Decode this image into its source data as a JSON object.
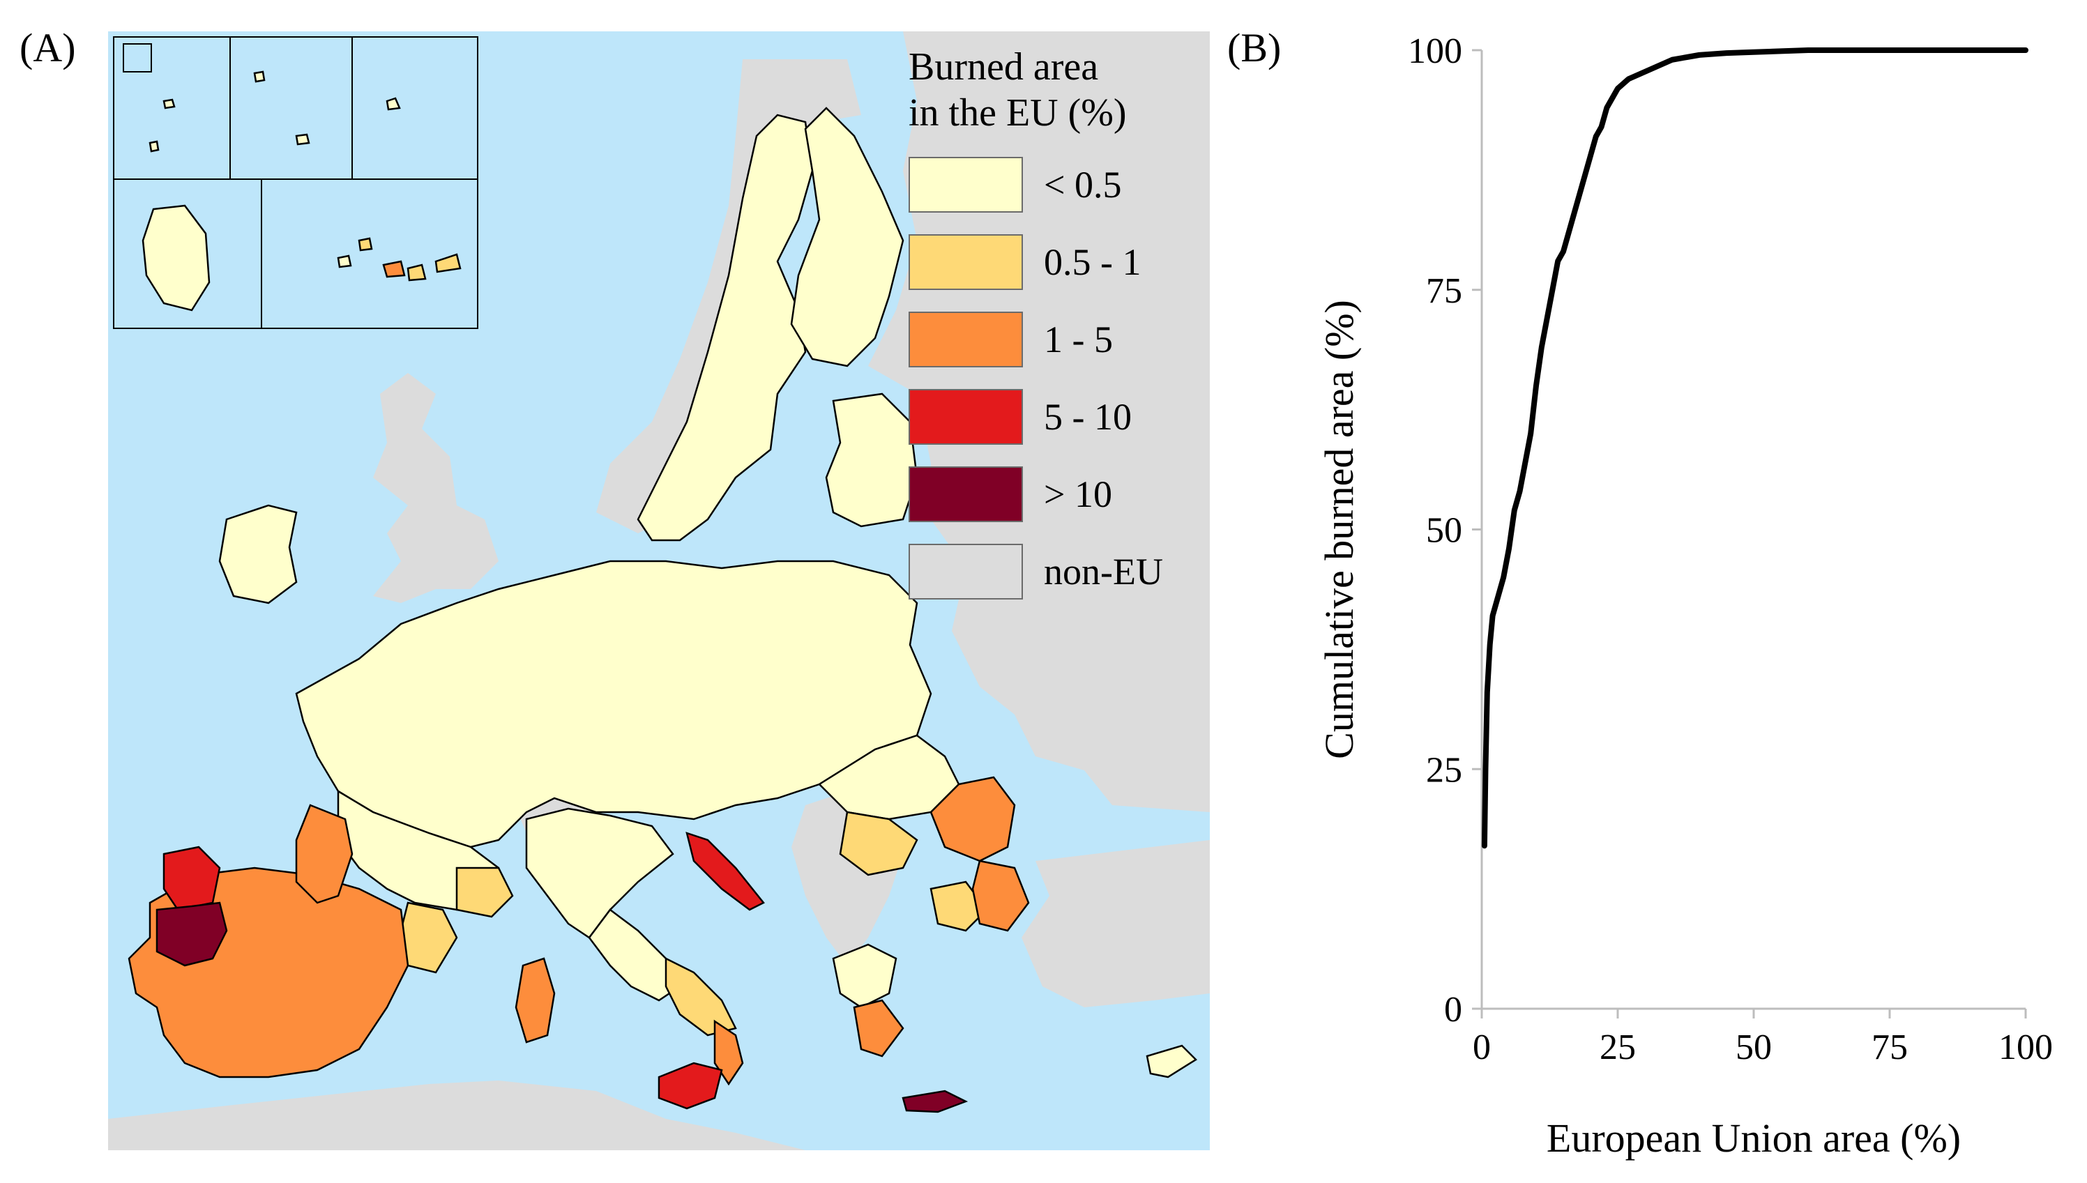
{
  "panels": {
    "map_label": "(A)",
    "chart_label": "(B)"
  },
  "map": {
    "legend": {
      "title_line1": "Burned area",
      "title_line2": "in the EU (%)",
      "items": [
        {
          "label": "< 0.5",
          "color": "#ffffcc"
        },
        {
          "label": "0.5 - 1",
          "color": "#fed976"
        },
        {
          "label": "1 - 5",
          "color": "#fd8d3c"
        },
        {
          "label": "5 - 10",
          "color": "#e31a1c"
        },
        {
          "label": "> 10",
          "color": "#800026"
        },
        {
          "label": "non-EU",
          "color": "#dcdcdc"
        }
      ]
    },
    "colors": {
      "sea": "#bee6fa",
      "non_eu": "#dcdcdc",
      "border": "#000000"
    }
  },
  "chart_data": {
    "type": "line",
    "xlabel": "European Union area (%)",
    "ylabel": "Cumulative burned area (%)",
    "xlim": [
      0,
      100
    ],
    "ylim": [
      0,
      100
    ],
    "xticks": [
      0,
      25,
      50,
      75,
      100
    ],
    "yticks": [
      0,
      25,
      50,
      75,
      100
    ],
    "grid": false,
    "series": [
      {
        "x": [
          0.5,
          0.7,
          1,
          1.5,
          2,
          3,
          4,
          5,
          6,
          7,
          8,
          9,
          10,
          11,
          12,
          13,
          14,
          15,
          16,
          17,
          18,
          19,
          20,
          21,
          22,
          23,
          24,
          25,
          27,
          29,
          31,
          33,
          35,
          38,
          40,
          45,
          50,
          55,
          60,
          65,
          70,
          75,
          80,
          90,
          100
        ],
        "y": [
          17,
          25,
          33,
          38,
          41,
          43,
          45,
          48,
          52,
          54,
          57,
          60,
          65,
          69,
          72,
          75,
          78,
          79,
          81,
          83,
          85,
          87,
          89,
          91,
          92,
          94,
          95,
          96,
          97,
          97.5,
          98,
          98.5,
          99,
          99.3,
          99.5,
          99.7,
          99.8,
          99.9,
          100,
          100,
          100,
          100,
          100,
          100,
          100
        ]
      }
    ]
  }
}
